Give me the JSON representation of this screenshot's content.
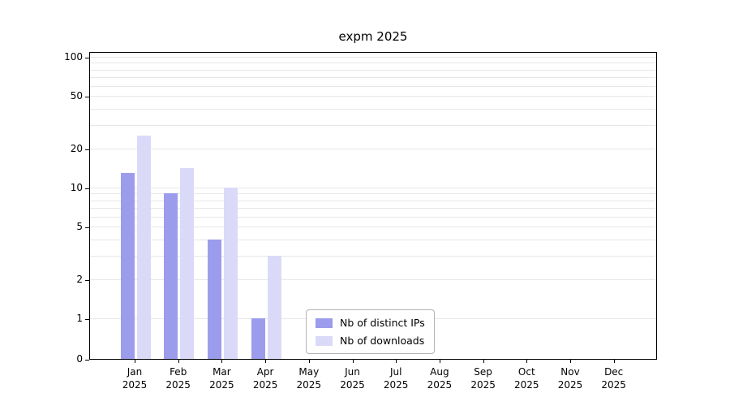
{
  "chart_data": {
    "type": "bar",
    "title": "expm 2025",
    "categories": [
      "Jan",
      "Feb",
      "Mar",
      "Apr",
      "May",
      "Jun",
      "Jul",
      "Aug",
      "Sep",
      "Oct",
      "Nov",
      "Dec"
    ],
    "category_year": "2025",
    "series": [
      {
        "name": "Nb of distinct IPs",
        "color": "#9c9ced",
        "values": [
          13,
          9,
          4,
          1,
          0,
          0,
          0,
          0,
          0,
          0,
          0,
          0
        ]
      },
      {
        "name": "Nb of downloads",
        "color": "#dadaf8",
        "values": [
          25,
          14,
          10,
          3,
          0,
          0,
          0,
          0,
          0,
          0,
          0,
          0
        ]
      }
    ],
    "yscale": "log",
    "ylim": [
      0,
      100
    ],
    "yticks": [
      0,
      1,
      2,
      5,
      10,
      20,
      50,
      100
    ],
    "minor_gridlines": [
      1,
      2,
      3,
      4,
      5,
      6,
      7,
      8,
      9,
      10,
      20,
      30,
      40,
      50,
      60,
      70,
      80,
      90,
      100
    ],
    "xlabel": "",
    "ylabel": "",
    "grid": true,
    "legend_position": "lower center"
  }
}
